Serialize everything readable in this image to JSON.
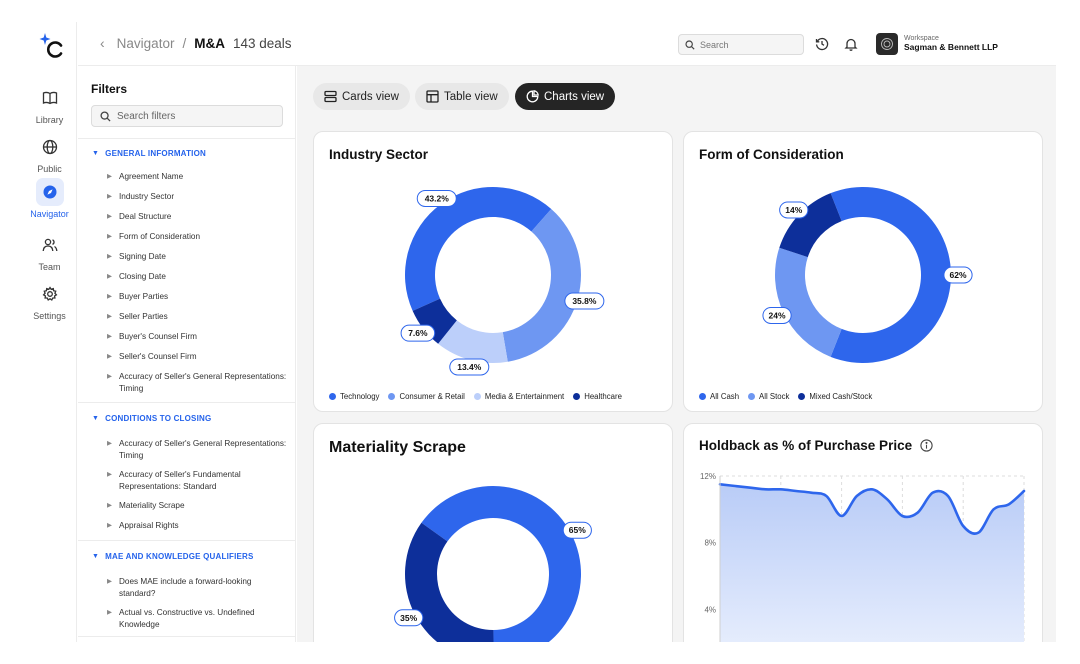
{
  "header": {
    "breadcrumb_parent": "Navigator",
    "breadcrumb_sep": "/",
    "breadcrumb_current": "M&A",
    "deal_count": "143 deals",
    "search_placeholder": "Search",
    "workspace_label": "Workspace",
    "workspace_name": "Sagman & Bennett LLP"
  },
  "rail": [
    {
      "label": "Library",
      "icon": "book-icon"
    },
    {
      "label": "Public",
      "icon": "globe-icon"
    },
    {
      "label": "Navigator",
      "icon": "compass-icon",
      "active": true
    },
    {
      "label": "Team",
      "icon": "users-icon"
    },
    {
      "label": "Settings",
      "icon": "gear-icon"
    }
  ],
  "filters": {
    "title": "Filters",
    "search_placeholder": "Search filters",
    "sections": [
      {
        "title": "GENERAL INFORMATION",
        "items": [
          "Agreement Name",
          "Industry Sector",
          "Deal Structure",
          "Form of Consideration",
          "Signing Date",
          "Closing Date",
          "Buyer Parties",
          "Seller Parties",
          "Buyer's Counsel Firm",
          "Seller's Counsel Firm",
          "Accuracy of Seller's General Representations: Timing"
        ]
      },
      {
        "title": "CONDITIONS TO CLOSING",
        "items": [
          "Accuracy of Seller's General Representations: Timing",
          "Accuracy of Seller's Fundamental Representations: Standard",
          "Materiality Scrape",
          "Appraisal Rights"
        ]
      },
      {
        "title": "MAE AND KNOWLEDGE QUALIFIERS",
        "items": [
          "Does MAE include a forward-looking standard?",
          "Actual vs. Constructive vs. Undefined Knowledge"
        ]
      }
    ]
  },
  "views": {
    "cards": "Cards view",
    "table": "Table view",
    "charts": "Charts view"
  },
  "colors": {
    "blue_main": "#2e66ec",
    "blue_mid": "#6e97f2",
    "blue_light": "#bccffa",
    "blue_dark": "#0d2f9a"
  },
  "chart_data": [
    {
      "type": "pie",
      "title": "Industry Sector",
      "series": [
        {
          "name": "Technology",
          "value": 43.2,
          "label": "43.2%",
          "color": "#2e66ec"
        },
        {
          "name": "Consumer & Retail",
          "value": 35.8,
          "label": "35.8%",
          "color": "#6e97f2"
        },
        {
          "name": "Media & Entertainment",
          "value": 13.4,
          "label": "13.4%",
          "color": "#bccffa"
        },
        {
          "name": "Healthcare",
          "value": 7.6,
          "label": "7.6%",
          "color": "#0d2f9a"
        }
      ]
    },
    {
      "type": "pie",
      "title": "Form of Consideration",
      "series": [
        {
          "name": "All Cash",
          "value": 62,
          "label": "62%",
          "color": "#2e66ec"
        },
        {
          "name": "All Stock",
          "value": 24,
          "label": "24%",
          "color": "#6e97f2"
        },
        {
          "name": "Mixed Cash/Stock",
          "value": 14,
          "label": "14%",
          "color": "#0d2f9a"
        }
      ]
    },
    {
      "type": "pie",
      "title": "Materiality Scrape",
      "series": [
        {
          "name": "",
          "value": 65,
          "label": "65%",
          "color": "#2e66ec"
        },
        {
          "name": "",
          "value": 35,
          "label": "35%",
          "color": "#0d2f9a"
        }
      ]
    },
    {
      "type": "area",
      "title": "Holdback as % of Purchase Price",
      "y_ticks": [
        "12%",
        "8%",
        "4%"
      ],
      "ylim": [
        0,
        12
      ],
      "x": [
        0,
        1,
        2,
        3,
        4,
        5,
        6,
        7,
        8,
        9,
        10,
        11,
        12,
        13,
        14,
        15,
        16,
        17,
        18,
        19,
        20
      ],
      "values": [
        11.5,
        11.4,
        11.3,
        11.2,
        11.2,
        11.1,
        11.0,
        10.8,
        9.6,
        10.8,
        11.2,
        10.6,
        9.6,
        9.8,
        11.0,
        10.8,
        9.0,
        8.6,
        10.0,
        10.3,
        11.1
      ],
      "grid": true
    }
  ]
}
